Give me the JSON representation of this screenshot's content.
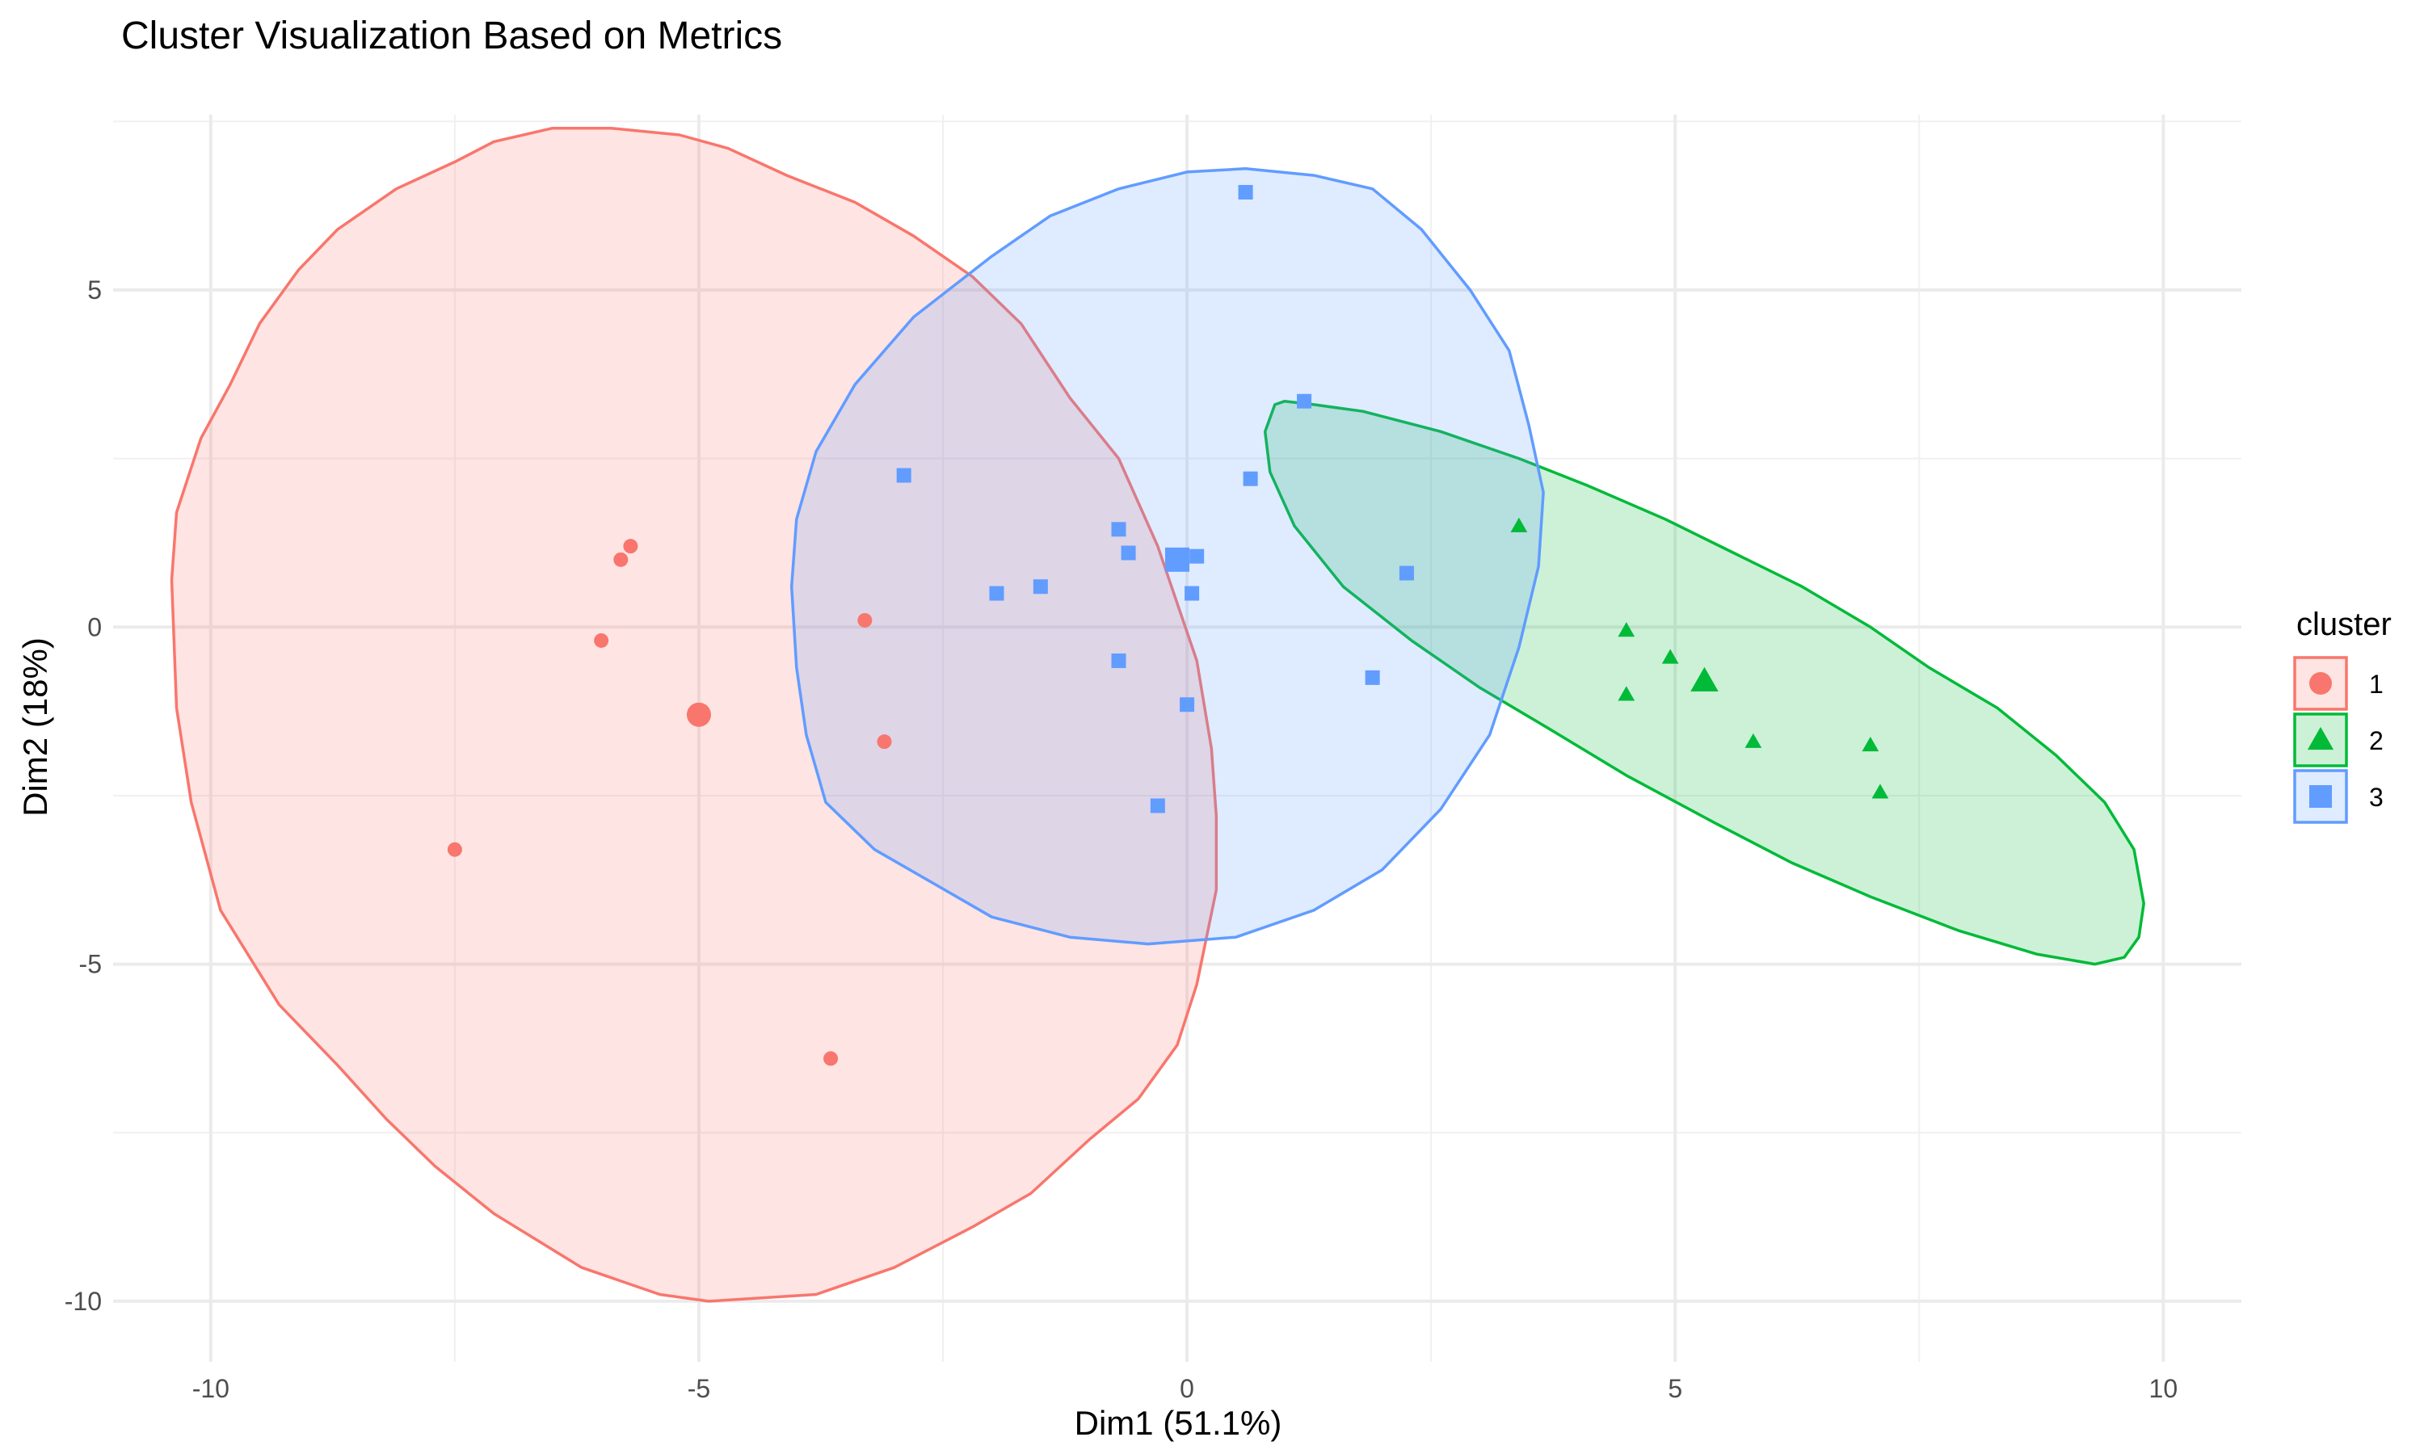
{
  "chart_data": {
    "type": "scatter",
    "title": "Cluster Visualization Based on Metrics",
    "xlabel": "Dim1 (51.1%)",
    "ylabel": "Dim2 (18%)",
    "xlim": [
      -11,
      10.8
    ],
    "ylim": [
      -10.9,
      7.6
    ],
    "x_ticks": [
      -10,
      -5,
      0,
      5,
      10
    ],
    "y_ticks": [
      5,
      0,
      -5,
      -10
    ],
    "x_tick_labels": [
      "-10",
      "-5",
      "0",
      "5",
      "10"
    ],
    "y_tick_labels": [
      "5",
      "0",
      "-5",
      "-10"
    ],
    "grid": true,
    "legend": {
      "title": "cluster",
      "position": "right"
    },
    "series": [
      {
        "name": "1",
        "color": "#F8766D",
        "shape": "circle",
        "points": [
          {
            "x": -5.7,
            "y": 1.2
          },
          {
            "x": -5.8,
            "y": 1.0
          },
          {
            "x": -6.0,
            "y": -0.2
          },
          {
            "x": -3.3,
            "y": 0.1
          },
          {
            "x": -3.1,
            "y": -1.7
          },
          {
            "x": -7.5,
            "y": -3.3
          },
          {
            "x": -3.65,
            "y": -6.4
          }
        ],
        "centroid": {
          "x": -5.0,
          "y": -1.3
        },
        "ellipse": [
          [
            -9.8,
            3.6
          ],
          [
            -9.5,
            4.5
          ],
          [
            -9.1,
            5.3
          ],
          [
            -8.7,
            5.9
          ],
          [
            -8.1,
            6.5
          ],
          [
            -7.5,
            6.9
          ],
          [
            -7.1,
            7.2
          ],
          [
            -6.5,
            7.4
          ],
          [
            -5.9,
            7.4
          ],
          [
            -5.2,
            7.3
          ],
          [
            -4.7,
            7.1
          ],
          [
            -4.1,
            6.7
          ],
          [
            -3.4,
            6.3
          ],
          [
            -2.8,
            5.8
          ],
          [
            -2.2,
            5.2
          ],
          [
            -1.7,
            4.5
          ],
          [
            -1.2,
            3.4
          ],
          [
            -0.7,
            2.5
          ],
          [
            -0.3,
            1.2
          ],
          [
            0.1,
            -0.5
          ],
          [
            0.25,
            -1.8
          ],
          [
            0.3,
            -2.8
          ],
          [
            0.3,
            -3.9
          ],
          [
            0.1,
            -5.3
          ],
          [
            -0.1,
            -6.2
          ],
          [
            -0.5,
            -7.0
          ],
          [
            -1.0,
            -7.6
          ],
          [
            -1.6,
            -8.4
          ],
          [
            -2.2,
            -8.9
          ],
          [
            -3.0,
            -9.5
          ],
          [
            -3.8,
            -9.9
          ],
          [
            -4.9,
            -10.0
          ],
          [
            -5.4,
            -9.9
          ],
          [
            -6.2,
            -9.5
          ],
          [
            -7.1,
            -8.7
          ],
          [
            -7.7,
            -8.0
          ],
          [
            -8.2,
            -7.3
          ],
          [
            -8.7,
            -6.5
          ],
          [
            -9.3,
            -5.6
          ],
          [
            -9.9,
            -4.2
          ],
          [
            -10.2,
            -2.6
          ],
          [
            -10.35,
            -1.2
          ],
          [
            -10.4,
            0.7
          ],
          [
            -10.35,
            1.7
          ],
          [
            -10.1,
            2.8
          ]
        ]
      },
      {
        "name": "2",
        "color": "#00BA38",
        "shape": "triangle",
        "points": [
          {
            "x": 3.4,
            "y": 1.5
          },
          {
            "x": 4.5,
            "y": -0.05
          },
          {
            "x": 4.5,
            "y": -1.0
          },
          {
            "x": 4.95,
            "y": -0.45
          },
          {
            "x": 5.8,
            "y": -1.7
          },
          {
            "x": 7.0,
            "y": -1.75
          },
          {
            "x": 7.1,
            "y": -2.45
          }
        ],
        "centroid": {
          "x": 5.3,
          "y": -0.8
        },
        "ellipse": [
          [
            0.9,
            3.3
          ],
          [
            1.0,
            3.35
          ],
          [
            1.3,
            3.3
          ],
          [
            1.8,
            3.2
          ],
          [
            2.6,
            2.9
          ],
          [
            3.4,
            2.5
          ],
          [
            4.1,
            2.1
          ],
          [
            4.9,
            1.6
          ],
          [
            5.6,
            1.1
          ],
          [
            6.3,
            0.6
          ],
          [
            7.0,
            0.0
          ],
          [
            7.6,
            -0.6
          ],
          [
            8.3,
            -1.2
          ],
          [
            8.9,
            -1.9
          ],
          [
            9.4,
            -2.6
          ],
          [
            9.7,
            -3.3
          ],
          [
            9.8,
            -4.1
          ],
          [
            9.75,
            -4.6
          ],
          [
            9.6,
            -4.9
          ],
          [
            9.3,
            -5.0
          ],
          [
            8.7,
            -4.85
          ],
          [
            7.9,
            -4.5
          ],
          [
            7.0,
            -4.0
          ],
          [
            6.2,
            -3.5
          ],
          [
            5.4,
            -2.9
          ],
          [
            4.5,
            -2.2
          ],
          [
            3.7,
            -1.5
          ],
          [
            3.0,
            -0.9
          ],
          [
            2.3,
            -0.2
          ],
          [
            1.6,
            0.6
          ],
          [
            1.1,
            1.5
          ],
          [
            0.85,
            2.3
          ],
          [
            0.8,
            2.9
          ]
        ]
      },
      {
        "name": "3",
        "color": "#619CFF",
        "shape": "square",
        "points": [
          {
            "x": 0.6,
            "y": 6.45
          },
          {
            "x": 1.2,
            "y": 3.35
          },
          {
            "x": 0.65,
            "y": 2.2
          },
          {
            "x": -2.9,
            "y": 2.25
          },
          {
            "x": -0.7,
            "y": 1.45
          },
          {
            "x": -0.6,
            "y": 1.1
          },
          {
            "x": 0.1,
            "y": 1.05
          },
          {
            "x": -1.95,
            "y": 0.5
          },
          {
            "x": -1.5,
            "y": 0.6
          },
          {
            "x": 0.05,
            "y": 0.5
          },
          {
            "x": 2.25,
            "y": 0.8
          },
          {
            "x": -0.7,
            "y": -0.5
          },
          {
            "x": 0.0,
            "y": -1.15
          },
          {
            "x": 1.9,
            "y": -0.75
          },
          {
            "x": -0.3,
            "y": -2.65
          }
        ],
        "centroid": {
          "x": -0.1,
          "y": 1.0
        },
        "ellipse": [
          [
            0.0,
            6.75
          ],
          [
            0.6,
            6.8
          ],
          [
            1.3,
            6.7
          ],
          [
            1.9,
            6.5
          ],
          [
            2.4,
            5.9
          ],
          [
            2.9,
            5.0
          ],
          [
            3.3,
            4.1
          ],
          [
            3.5,
            3.0
          ],
          [
            3.65,
            2.0
          ],
          [
            3.6,
            0.9
          ],
          [
            3.4,
            -0.3
          ],
          [
            3.1,
            -1.6
          ],
          [
            2.6,
            -2.7
          ],
          [
            2.0,
            -3.6
          ],
          [
            1.3,
            -4.2
          ],
          [
            0.5,
            -4.6
          ],
          [
            -0.4,
            -4.7
          ],
          [
            -1.2,
            -4.6
          ],
          [
            -2.0,
            -4.3
          ],
          [
            -2.6,
            -3.8
          ],
          [
            -3.2,
            -3.3
          ],
          [
            -3.7,
            -2.6
          ],
          [
            -3.9,
            -1.6
          ],
          [
            -4.0,
            -0.6
          ],
          [
            -4.05,
            0.6
          ],
          [
            -4.0,
            1.6
          ],
          [
            -3.8,
            2.6
          ],
          [
            -3.4,
            3.6
          ],
          [
            -2.8,
            4.6
          ],
          [
            -2.0,
            5.5
          ],
          [
            -1.4,
            6.1
          ],
          [
            -0.7,
            6.5
          ]
        ]
      }
    ]
  }
}
